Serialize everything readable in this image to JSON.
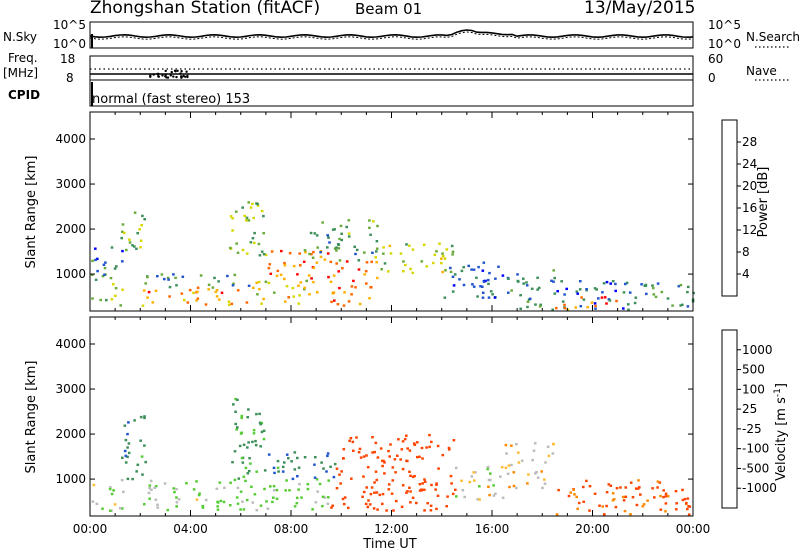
{
  "header": {
    "station": "Zhongshan Station (fitACF)",
    "beam": "Beam 01",
    "date": "13/May/2015"
  },
  "top_panels": {
    "sky_label": "N.Sky",
    "sky_top_tick": "10^5",
    "sky_bottom_tick": "10^0",
    "search_label": "N.Search",
    "search_top_tick": "10^5",
    "search_bottom_tick": "10^0",
    "freq_label_line1": "Freq.",
    "freq_label_line2": "[MHz]",
    "freq_top_tick": "18",
    "freq_bottom_tick": "8",
    "nave_label": "Nave",
    "nave_top_tick": "60",
    "nave_bottom_tick": "0",
    "cpid_label": "CPID",
    "cpid_text": "normal (fast stereo) 153"
  },
  "colors": {
    "power": [
      "#0000ff",
      "#2255cc",
      "#3d8f5a",
      "#6aaa3a",
      "#d7d700",
      "#ffb000",
      "#ff6600",
      "#ff0000"
    ],
    "velocity": [
      "#ff0000",
      "#ff4400",
      "#ff8800",
      "#ffbb33",
      "#bbbbbb",
      "#55cc33",
      "#3d8f5a",
      "#2255cc",
      "#0000ee"
    ]
  },
  "chart_data": [
    {
      "type": "heatmap",
      "name": "power",
      "ylabel": "Slant Range [km]",
      "xlabel": "",
      "x_ticks": [
        "00:00",
        "04:00",
        "08:00",
        "12:00",
        "16:00",
        "20:00",
        "00:00"
      ],
      "x_range_hours": [
        0,
        24
      ],
      "y_ticks": [
        1000,
        2000,
        3000,
        4000
      ],
      "ylim": [
        180,
        4600
      ],
      "colorbar_label": "Power [dB]",
      "colorbar_ticks": [
        "4",
        "8",
        "12",
        "16",
        "20",
        "24",
        "28"
      ],
      "colorbar_range": [
        0,
        32
      ],
      "scatter_regions": [
        {
          "t0": 0.0,
          "t1": 1.3,
          "r0": 300,
          "r1": 1000,
          "value": 12
        },
        {
          "t0": 0.0,
          "t1": 1.3,
          "r0": 1000,
          "r1": 1600,
          "value": 8
        },
        {
          "t0": 1.2,
          "t1": 2.2,
          "r0": 1400,
          "r1": 2500,
          "value": 14
        },
        {
          "t0": 2.0,
          "t1": 6.5,
          "r0": 300,
          "r1": 700,
          "value": 24
        },
        {
          "t0": 2.0,
          "t1": 6.5,
          "r0": 700,
          "r1": 1000,
          "value": 10
        },
        {
          "t0": 5.5,
          "t1": 7.0,
          "r0": 1400,
          "r1": 2800,
          "value": 14
        },
        {
          "t0": 6.5,
          "t1": 9.0,
          "r0": 300,
          "r1": 900,
          "value": 20
        },
        {
          "t0": 7.0,
          "t1": 9.5,
          "r0": 900,
          "r1": 1600,
          "value": 26
        },
        {
          "t0": 9.5,
          "t1": 11.5,
          "r0": 300,
          "r1": 1300,
          "value": 24
        },
        {
          "t0": 8.5,
          "t1": 11.5,
          "r0": 1300,
          "r1": 2200,
          "value": 12
        },
        {
          "t0": 11.5,
          "t1": 14.5,
          "r0": 1000,
          "r1": 1700,
          "value": 16
        },
        {
          "t0": 14.0,
          "t1": 16.5,
          "r0": 400,
          "r1": 1300,
          "value": 6
        },
        {
          "t0": 16.5,
          "t1": 18.5,
          "r0": 200,
          "r1": 1100,
          "value": 10
        },
        {
          "t0": 18.5,
          "t1": 21.5,
          "r0": 200,
          "r1": 900,
          "value": 7
        },
        {
          "t0": 18.5,
          "t1": 21.0,
          "r0": 200,
          "r1": 500,
          "value": 24
        },
        {
          "t0": 21.5,
          "t1": 24.0,
          "r0": 200,
          "r1": 800,
          "value": 10
        }
      ]
    },
    {
      "type": "heatmap",
      "name": "velocity",
      "ylabel": "Slant Range [km]",
      "xlabel": "Time UT",
      "x_ticks": [
        "00:00",
        "04:00",
        "08:00",
        "12:00",
        "16:00",
        "20:00",
        "00:00"
      ],
      "x_range_hours": [
        0,
        24
      ],
      "y_ticks": [
        1000,
        2000,
        3000,
        4000
      ],
      "ylim": [
        180,
        4600
      ],
      "colorbar_label": "Velocity [m s^-1]",
      "colorbar_ticks": [
        "1000",
        "500",
        "100",
        "25",
        "-25",
        "-100",
        "-500",
        "-1000"
      ],
      "colorbar_range": [
        -1200,
        1200
      ],
      "scatter_regions": [
        {
          "t0": 0.0,
          "t1": 1.3,
          "r0": 300,
          "r1": 1000,
          "value": 100
        },
        {
          "t0": 1.2,
          "t1": 2.2,
          "r0": 1000,
          "r1": 2500,
          "value": 900
        },
        {
          "t0": 2.0,
          "t1": 6.5,
          "r0": 300,
          "r1": 1000,
          "value": 120
        },
        {
          "t0": 5.5,
          "t1": 7.0,
          "r0": 1000,
          "r1": 2800,
          "value": 600
        },
        {
          "t0": 6.5,
          "t1": 9.5,
          "r0": 300,
          "r1": 1000,
          "value": 150
        },
        {
          "t0": 7.0,
          "t1": 10.0,
          "r0": 1000,
          "r1": 1600,
          "value": 900
        },
        {
          "t0": 9.5,
          "t1": 14.5,
          "r0": 300,
          "r1": 1300,
          "value": -300
        },
        {
          "t0": 10.0,
          "t1": 14.5,
          "r0": 1300,
          "r1": 2000,
          "value": -200
        },
        {
          "t0": 14.5,
          "t1": 16.5,
          "r0": 500,
          "r1": 1300,
          "value": 60
        },
        {
          "t0": 16.5,
          "t1": 18.5,
          "r0": 800,
          "r1": 1800,
          "value": 0
        },
        {
          "t0": 18.5,
          "t1": 24.0,
          "r0": 200,
          "r1": 1000,
          "value": -150
        }
      ]
    }
  ]
}
